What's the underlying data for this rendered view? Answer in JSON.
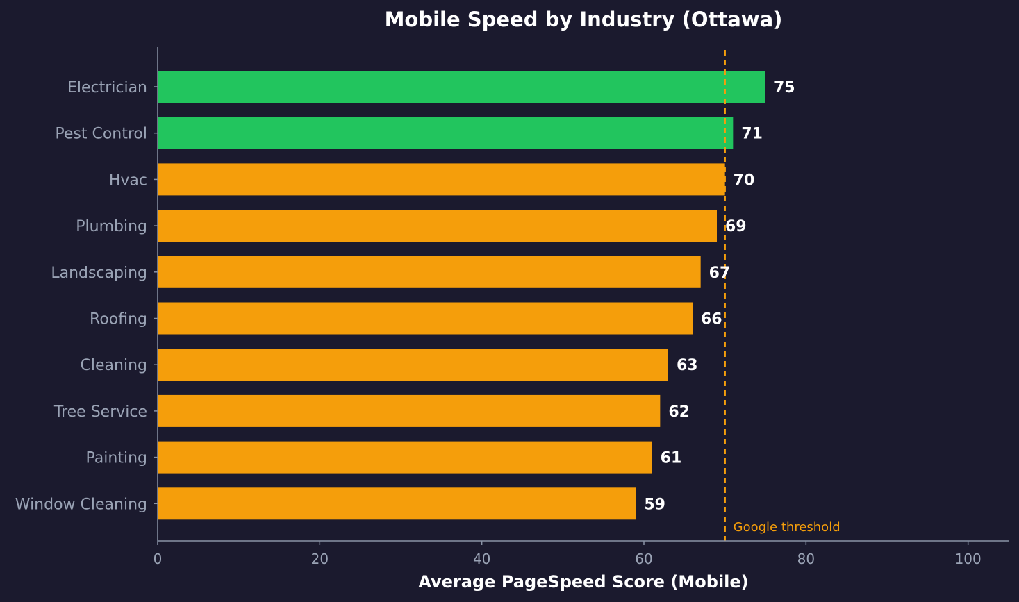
{
  "chart_data": {
    "type": "bar",
    "orientation": "horizontal",
    "title": "Mobile Speed by Industry (Ottawa)",
    "xlabel": "Average PageSpeed Score (Mobile)",
    "ylabel": "",
    "xlim": [
      0,
      105
    ],
    "xticks": [
      0,
      20,
      40,
      60,
      80,
      100
    ],
    "grid": false,
    "categories": [
      "Electrician",
      "Pest Control",
      "Hvac",
      "Plumbing",
      "Landscaping",
      "Roofing",
      "Cleaning",
      "Tree Service",
      "Painting",
      "Window Cleaning"
    ],
    "values": [
      75,
      71,
      70,
      69,
      67,
      66,
      63,
      62,
      61,
      59
    ],
    "value_labels": [
      "75",
      "71",
      "70",
      "69",
      "67",
      "66",
      "63",
      "62",
      "61",
      "59"
    ],
    "bar_colors": [
      "#22c55e",
      "#22c55e",
      "#f59e0b",
      "#f59e0b",
      "#f59e0b",
      "#f59e0b",
      "#f59e0b",
      "#f59e0b",
      "#f59e0b",
      "#f59e0b"
    ],
    "threshold": {
      "value": 70,
      "label": "Google threshold",
      "color": "#f59e0b"
    }
  },
  "colors": {
    "background": "#1b1a2e",
    "axis": "#8a93a6",
    "above_threshold": "#22c55e",
    "below_threshold": "#f59e0b"
  }
}
